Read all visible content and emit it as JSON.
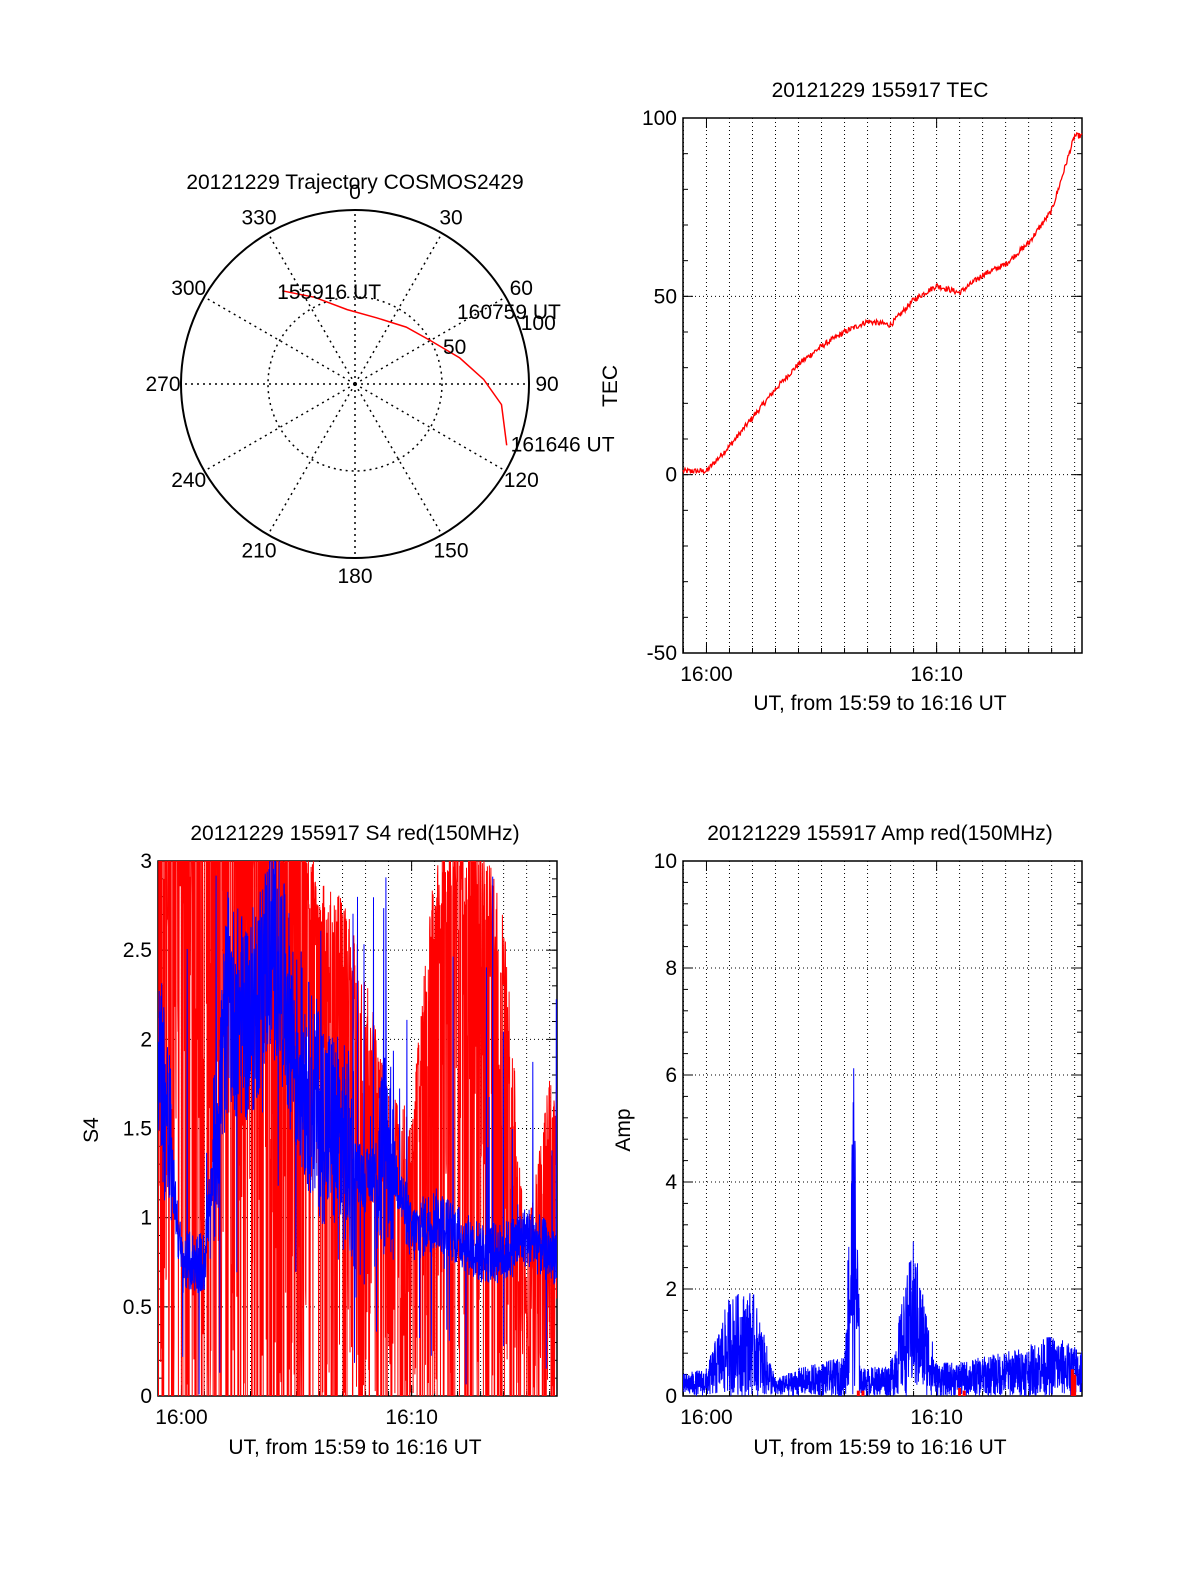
{
  "colors": {
    "primary": "#ff0000",
    "secondary": "#0000ff",
    "axis": "#000000",
    "background": "#ffffff"
  },
  "chart_data": [
    {
      "id": "trajectory",
      "type": "polar",
      "title": "20121229 Trajectory COSMOS2429",
      "angle_labels": [
        "0",
        "30",
        "60",
        "90",
        "120",
        "150",
        "180",
        "210",
        "240",
        "270",
        "300",
        "330"
      ],
      "radius_labels": [
        "50",
        "100"
      ],
      "rmax": 100,
      "grid": true,
      "track": {
        "color": "#ff0000",
        "points": [
          {
            "az": 322,
            "r": 68
          },
          {
            "az": 335,
            "r": 55
          },
          {
            "az": 354,
            "r": 43
          },
          {
            "az": 18,
            "r": 40
          },
          {
            "az": 42,
            "r": 44
          },
          {
            "az": 60,
            "r": 50
          },
          {
            "az": 76,
            "r": 62
          },
          {
            "az": 88,
            "r": 74
          },
          {
            "az": 98,
            "r": 85
          },
          {
            "az": 112,
            "r": 94
          }
        ]
      },
      "annotations": [
        {
          "text": "155916 UT",
          "az": 322,
          "r": 68
        },
        {
          "text": "160759 UT",
          "az": 52,
          "r": 70
        },
        {
          "text": "161646 UT",
          "az": 112,
          "r": 94
        }
      ]
    },
    {
      "id": "tec",
      "type": "line",
      "title": "20121229 155917 TEC",
      "xlabel": "UT, from 15:59 to 16:16 UT",
      "ylabel": "TEC",
      "xlim": [
        15.983,
        16.272
      ],
      "ylim": [
        -50,
        100
      ],
      "yticks": [
        -50,
        0,
        50,
        100
      ],
      "xticks": [
        {
          "at": 16.0,
          "label": "16:00"
        },
        {
          "at": 16.1667,
          "label": "16:10"
        }
      ],
      "grid": true,
      "series": [
        {
          "color": "#ff0000",
          "x": [
            "15:59",
            "16:00",
            "16:01",
            "16:02",
            "16:03",
            "16:04",
            "16:05",
            "16:06",
            "16:07",
            "16:08",
            "16:09",
            "16:10",
            "16:11",
            "16:12",
            "16:13",
            "16:14",
            "16:15",
            "16:16"
          ],
          "y": [
            1,
            1,
            8,
            16,
            24,
            31,
            36,
            40,
            43,
            42,
            49,
            53,
            51,
            56,
            59,
            65,
            74,
            95
          ]
        }
      ]
    },
    {
      "id": "s4",
      "type": "line",
      "title": "20121229 155917 S4 red(150MHz)",
      "xlabel": "UT, from 15:59 to 16:16 UT",
      "ylabel": "S4",
      "xlim": [
        15.983,
        16.272
      ],
      "ylim": [
        0,
        3
      ],
      "yticks": [
        0,
        0.5,
        1,
        1.5,
        2,
        2.5,
        3
      ],
      "xticks": [
        {
          "at": 16.0,
          "label": "16:00"
        },
        {
          "at": 16.1667,
          "label": "16:10"
        }
      ],
      "grid": true,
      "series": [
        {
          "color": "#ff0000",
          "x": [
            "15:59",
            "16:00",
            "16:01",
            "16:02",
            "16:03",
            "16:04",
            "16:05",
            "16:06",
            "16:07",
            "16:08",
            "16:09",
            "16:10",
            "16:11",
            "16:12",
            "16:13",
            "16:14",
            "16:15",
            "16:16"
          ],
          "y": [
            3.0,
            3.0,
            3.0,
            3.0,
            3.0,
            3.0,
            2.9,
            2.4,
            2.3,
            1.9,
            1.2,
            1.1,
            2.5,
            2.8,
            2.7,
            2.2,
            0.4,
            1.3
          ]
        },
        {
          "color": "#0000ff",
          "x": [
            "15:59",
            "16:00",
            "16:01",
            "16:02",
            "16:03",
            "16:04",
            "16:05",
            "16:06",
            "16:07",
            "16:08",
            "16:09",
            "16:10",
            "16:11",
            "16:12",
            "16:13",
            "16:14",
            "16:15",
            "16:16"
          ],
          "y": [
            2.0,
            0.75,
            0.75,
            2.2,
            2.1,
            2.6,
            1.9,
            1.6,
            1.4,
            1.2,
            1.4,
            0.9,
            1.0,
            0.9,
            0.8,
            0.8,
            0.9,
            0.8
          ]
        }
      ]
    },
    {
      "id": "amp",
      "type": "line",
      "title": "20121229 155917 Amp red(150MHz)",
      "xlabel": "UT, from 15:59 to 16:16 UT",
      "ylabel": "Amp",
      "xlim": [
        15.983,
        16.272
      ],
      "ylim": [
        0,
        10
      ],
      "yticks": [
        0,
        2,
        4,
        6,
        8,
        10
      ],
      "xticks": [
        {
          "at": 16.0,
          "label": "16:00"
        },
        {
          "at": 16.1667,
          "label": "16:10"
        }
      ],
      "grid": true,
      "series": [
        {
          "color": "#ff0000",
          "x": [
            "16:06.6",
            "16:06.8",
            "16:11.0",
            "16:11.2",
            "16:15.9",
            "16:16.0"
          ],
          "y": [
            0.1,
            0.1,
            0.15,
            0.1,
            0.5,
            0.4
          ]
        },
        {
          "color": "#0000ff",
          "x": [
            "15:59",
            "16:00",
            "16:01",
            "16:02",
            "16:03",
            "16:04",
            "16:05",
            "16:06",
            "16:06.4",
            "16:06.7",
            "16:07",
            "16:08",
            "16:09",
            "16:10",
            "16:11",
            "16:12",
            "16:13",
            "16:14",
            "16:15",
            "16:16"
          ],
          "y": [
            0.4,
            0.5,
            1.8,
            1.9,
            0.3,
            0.5,
            0.6,
            0.7,
            5.9,
            0.5,
            0.5,
            0.6,
            2.8,
            0.6,
            0.6,
            0.7,
            0.8,
            0.9,
            1.1,
            0.9
          ]
        }
      ]
    }
  ]
}
